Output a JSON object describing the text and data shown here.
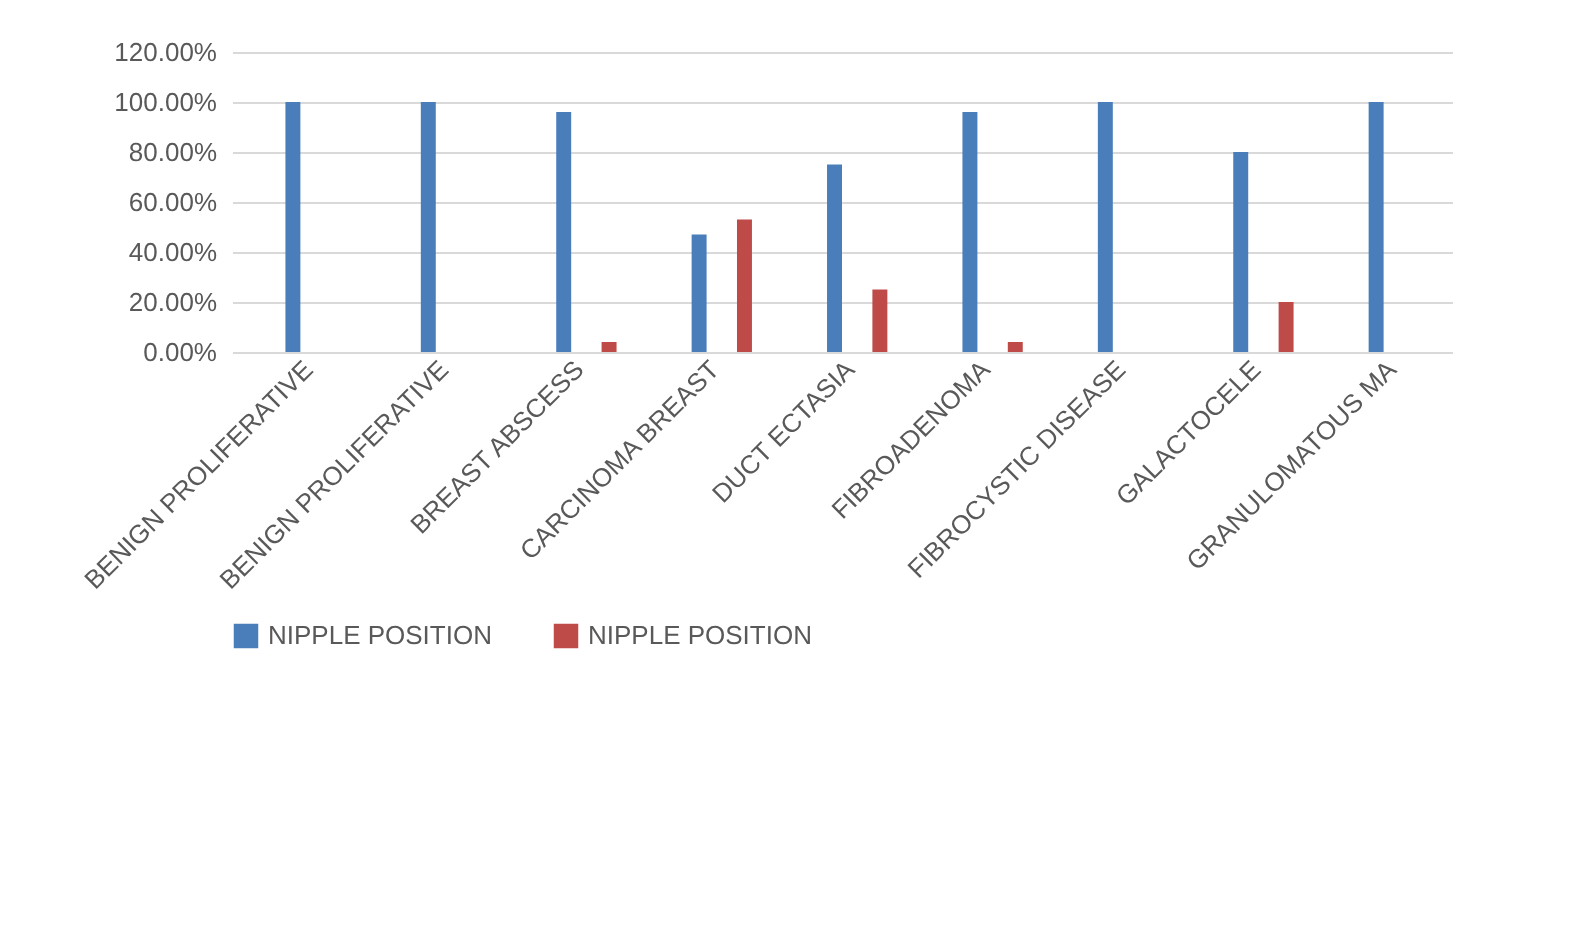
{
  "chart_data": {
    "type": "bar",
    "categories": [
      "BENIGN PROLIFERATIVE",
      "BENIGN PROLIFERATIVE",
      "BREAST ABSCESS",
      "CARCINOMA BREAST",
      "DUCT ECTASIA",
      "FIBROADENOMA",
      "FIBROCYSTIC DISEASE",
      "GALACTOCELE",
      "GRANULOMATOUS MA"
    ],
    "series": [
      {
        "name": "NIPPLE POSITION",
        "color": "#4a7ebb",
        "values": [
          100,
          100,
          96,
          47,
          75,
          96,
          100,
          80,
          100
        ]
      },
      {
        "name": "NIPPLE POSITION",
        "color": "#be4b48",
        "values": [
          null,
          null,
          4,
          53,
          25,
          4,
          null,
          20,
          null
        ]
      }
    ],
    "ylim": [
      0,
      120
    ],
    "yticks": [
      {
        "value": 0,
        "label": "0.00%"
      },
      {
        "value": 20,
        "label": "20.00%"
      },
      {
        "value": 40,
        "label": "40.00%"
      },
      {
        "value": 60,
        "label": "60.00%"
      },
      {
        "value": 80,
        "label": "80.00%"
      },
      {
        "value": 100,
        "label": "100.00%"
      },
      {
        "value": 120,
        "label": "120.00%"
      }
    ],
    "grid": "y",
    "legend": "bottom"
  }
}
